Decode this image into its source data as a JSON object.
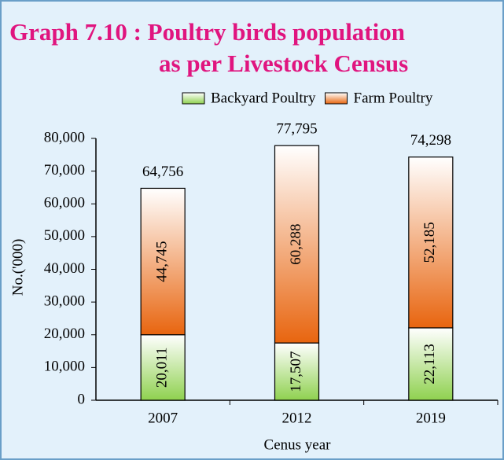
{
  "chart_data": {
    "type": "bar",
    "stacked": true,
    "title": [
      "Graph 7.10 : Poultry birds population",
      "as per Livestock Census"
    ],
    "x_label": "Cenus year",
    "y_label": "No.('000)",
    "categories": [
      "2007",
      "2012",
      "2019"
    ],
    "series": [
      {
        "name": "Backyard Poultry",
        "color": "#8fd14f",
        "values": [
          20011,
          17507,
          22113
        ],
        "value_labels": [
          "20,011",
          "17,507",
          "22,113"
        ]
      },
      {
        "name": "Farm Poultry",
        "color": "#e8650f",
        "values": [
          44745,
          60288,
          52185
        ],
        "value_labels": [
          "44,745",
          "60,288",
          "52,185"
        ]
      }
    ],
    "totals": [
      64756,
      77795,
      74298
    ],
    "total_labels": [
      "64,756",
      "77,795",
      "74,298"
    ],
    "ylim": [
      0,
      80000
    ],
    "yticks": [
      0,
      {
        "value": 10000,
        "label": "10,000"
      },
      {
        "value": 20000,
        "label": "20,000"
      },
      {
        "value": 30000,
        "label": "30,000"
      },
      {
        "value": 40000,
        "label": "40,000"
      },
      {
        "value": 50000,
        "label": "50,000"
      },
      {
        "value": 60000,
        "label": "60,000"
      },
      {
        "value": 70000,
        "label": "70,000"
      },
      {
        "value": 80000,
        "label": "80,000"
      }
    ],
    "legend": "top-right",
    "grid": false
  }
}
